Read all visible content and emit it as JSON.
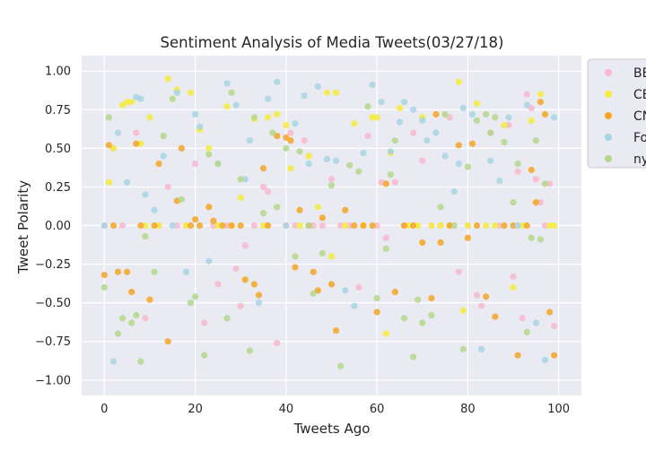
{
  "chart_data": {
    "type": "scatter",
    "title": "Sentiment Analysis of Media Tweets(03/27/18)",
    "xlabel": "Tweets Ago",
    "ylabel": "Tweet Polarity",
    "xlim": [
      -5,
      105
    ],
    "ylim": [
      -1.1,
      1.1
    ],
    "xticks": [
      0,
      20,
      40,
      60,
      80,
      100
    ],
    "yticks": [
      1.0,
      0.75,
      0.5,
      0.25,
      0.0,
      -0.25,
      -0.5,
      -0.75,
      -1.0
    ],
    "ytick_labels": [
      "1.00",
      "0.75",
      "0.50",
      "0.25",
      "0.00",
      "−0.25",
      "−0.50",
      "−0.75",
      "−1.00"
    ],
    "xtick_labels": [
      "0",
      "20",
      "40",
      "60",
      "80",
      "100"
    ],
    "grid": true,
    "legend_position": "right, outside plot (clipped)",
    "series": [
      {
        "name": "BBC",
        "color": "#f9b8cc",
        "x": [
          0,
          2,
          4,
          7,
          9,
          12,
          14,
          16,
          18,
          20,
          22,
          24,
          25,
          27,
          29,
          30,
          31,
          33,
          35,
          36,
          38,
          40,
          41,
          42,
          44,
          46,
          48,
          50,
          52,
          54,
          56,
          58,
          60,
          61,
          62,
          64,
          66,
          68,
          70,
          72,
          74,
          76,
          78,
          80,
          82,
          83,
          85,
          87,
          89,
          90,
          91,
          92,
          93,
          94,
          95,
          96,
          97,
          98,
          99
        ],
        "y": [
          0,
          0.5,
          0,
          0.6,
          -0.6,
          0,
          0.25,
          0,
          0,
          0.4,
          -0.63,
          0,
          -0.38,
          0,
          -0.28,
          -0.52,
          -0.13,
          0,
          0.25,
          0.22,
          -0.76,
          0,
          0.6,
          0,
          0.55,
          0,
          0,
          0.3,
          0,
          0,
          -0.4,
          0.58,
          0,
          0.28,
          -0.08,
          0.28,
          0,
          0.6,
          0.42,
          0,
          0,
          0.7,
          -0.3,
          0,
          -0.45,
          -0.52,
          0.6,
          0,
          0.65,
          -0.33,
          0.35,
          -0.6,
          0.85,
          0.76,
          0.3,
          0.15,
          0,
          0.27,
          -0.65
        ]
      },
      {
        "name": "CBS",
        "color": "#f5ec3b",
        "x": [
          1,
          2,
          4,
          5,
          6,
          8,
          9,
          10,
          12,
          14,
          16,
          18,
          19,
          21,
          23,
          25,
          27,
          28,
          30,
          33,
          35,
          36,
          38,
          40,
          41,
          43,
          45,
          47,
          49,
          50,
          51,
          53,
          55,
          57,
          59,
          60,
          62,
          63,
          65,
          67,
          69,
          70,
          72,
          74,
          76,
          78,
          79,
          80,
          82,
          84,
          86,
          88,
          90,
          92,
          94,
          96,
          98,
          99
        ],
        "y": [
          0.28,
          0.5,
          0.78,
          0.8,
          0.8,
          0.53,
          0,
          0.7,
          0,
          0.95,
          0.88,
          0,
          0.86,
          0.62,
          0.5,
          0,
          0.77,
          0,
          0.18,
          0.69,
          0,
          0.7,
          0.72,
          0.65,
          0.37,
          0,
          0.45,
          0.12,
          0.86,
          -0.2,
          0.86,
          0,
          0.66,
          0,
          0.7,
          0.7,
          -0.7,
          0.47,
          0.76,
          0,
          0,
          0.7,
          0,
          0,
          0,
          0.93,
          -0.55,
          0,
          0.79,
          0,
          0,
          0.65,
          -0.4,
          0,
          0.68,
          0.85,
          0,
          0
        ]
      },
      {
        "name": "CNN",
        "color": "#f5a623",
        "x": [
          0,
          1,
          2,
          3,
          5,
          6,
          7,
          8,
          10,
          11,
          12,
          14,
          16,
          17,
          19,
          20,
          21,
          23,
          24,
          26,
          28,
          30,
          31,
          33,
          34,
          35,
          36,
          38,
          40,
          41,
          42,
          43,
          45,
          46,
          47,
          48,
          50,
          51,
          53,
          55,
          57,
          59,
          60,
          62,
          64,
          66,
          68,
          70,
          72,
          73,
          74,
          76,
          78,
          80,
          81,
          82,
          84,
          86,
          88,
          90,
          91,
          93,
          94,
          95,
          96,
          97,
          98,
          99
        ],
        "y": [
          -0.32,
          0.52,
          0,
          -0.3,
          -0.3,
          -0.43,
          0.53,
          0,
          -0.48,
          0,
          0.4,
          -0.75,
          0.16,
          0.5,
          0,
          0.04,
          0,
          0.12,
          0.03,
          0,
          0,
          0,
          -0.35,
          -0.38,
          -0.45,
          0.37,
          0,
          0.58,
          0.57,
          0.55,
          -0.27,
          0.1,
          0,
          -0.3,
          -0.42,
          0.05,
          -0.38,
          -0.68,
          0.1,
          0,
          0,
          0,
          -0.56,
          0.27,
          -0.43,
          0,
          0,
          -0.11,
          -0.47,
          0.72,
          -0.11,
          0,
          0.52,
          -0.08,
          0.53,
          0,
          -0.46,
          -0.59,
          0,
          0,
          -0.84,
          0,
          0.36,
          0.15,
          0.8,
          0.72,
          -0.56,
          -0.84
        ]
      },
      {
        "name": "Fox",
        "color": "#a6d5e3",
        "x": [
          0,
          2,
          3,
          5,
          7,
          8,
          9,
          11,
          13,
          15,
          16,
          18,
          20,
          21,
          23,
          25,
          27,
          29,
          31,
          32,
          34,
          36,
          38,
          40,
          42,
          44,
          45,
          47,
          49,
          51,
          53,
          55,
          57,
          59,
          61,
          63,
          65,
          66,
          68,
          70,
          71,
          73,
          75,
          77,
          78,
          79,
          81,
          83,
          85,
          87,
          89,
          91,
          93,
          95,
          97,
          99
        ],
        "y": [
          0,
          -0.88,
          0.6,
          0.28,
          0.83,
          0.82,
          0.2,
          0.1,
          0.45,
          0,
          0.86,
          -0.3,
          0.72,
          0.64,
          -0.23,
          0.4,
          0.92,
          0.78,
          0.3,
          0.55,
          -0.5,
          0.82,
          0.93,
          0,
          0.66,
          0.84,
          0.4,
          0.9,
          0.43,
          0.42,
          -0.42,
          -0.52,
          0.47,
          0.91,
          0.8,
          0.48,
          0.67,
          0.8,
          0.75,
          0.68,
          0.55,
          0.6,
          0.45,
          0.22,
          0.4,
          0.76,
          0.72,
          -0.8,
          0.42,
          0.29,
          0.7,
          0,
          0.78,
          -0.63,
          -0.87,
          0.7
        ]
      },
      {
        "name": "nytimes",
        "color": "#b3d88a",
        "x": [
          0,
          1,
          3,
          4,
          6,
          7,
          8,
          9,
          11,
          13,
          15,
          17,
          19,
          20,
          22,
          23,
          25,
          27,
          28,
          30,
          32,
          33,
          35,
          37,
          38,
          40,
          42,
          43,
          45,
          46,
          48,
          50,
          52,
          54,
          56,
          58,
          60,
          62,
          63,
          64,
          66,
          68,
          69,
          70,
          72,
          74,
          75,
          77,
          79,
          80,
          82,
          84,
          85,
          86,
          88,
          90,
          91,
          93,
          94,
          95,
          96,
          97
        ],
        "y": [
          -0.4,
          0.7,
          -0.7,
          -0.6,
          -0.63,
          -0.58,
          -0.88,
          -0.07,
          -0.3,
          0.58,
          0.82,
          0.17,
          -0.5,
          -0.46,
          -0.84,
          0.46,
          0.4,
          -0.6,
          0.86,
          0.3,
          -0.81,
          0.7,
          0.08,
          0.6,
          0.12,
          0.5,
          -0.2,
          0.48,
          0,
          -0.44,
          -0.18,
          0.26,
          -0.91,
          0.39,
          0.35,
          0.77,
          -0.47,
          -0.15,
          0.33,
          0.55,
          -0.6,
          -0.85,
          -0.48,
          -0.63,
          -0.58,
          0.12,
          0.72,
          0,
          -0.8,
          0.38,
          0.68,
          0.72,
          0.6,
          0.7,
          0.54,
          0.15,
          0.4,
          -0.69,
          -0.08,
          0.55,
          -0.09,
          0.27
        ]
      }
    ]
  }
}
